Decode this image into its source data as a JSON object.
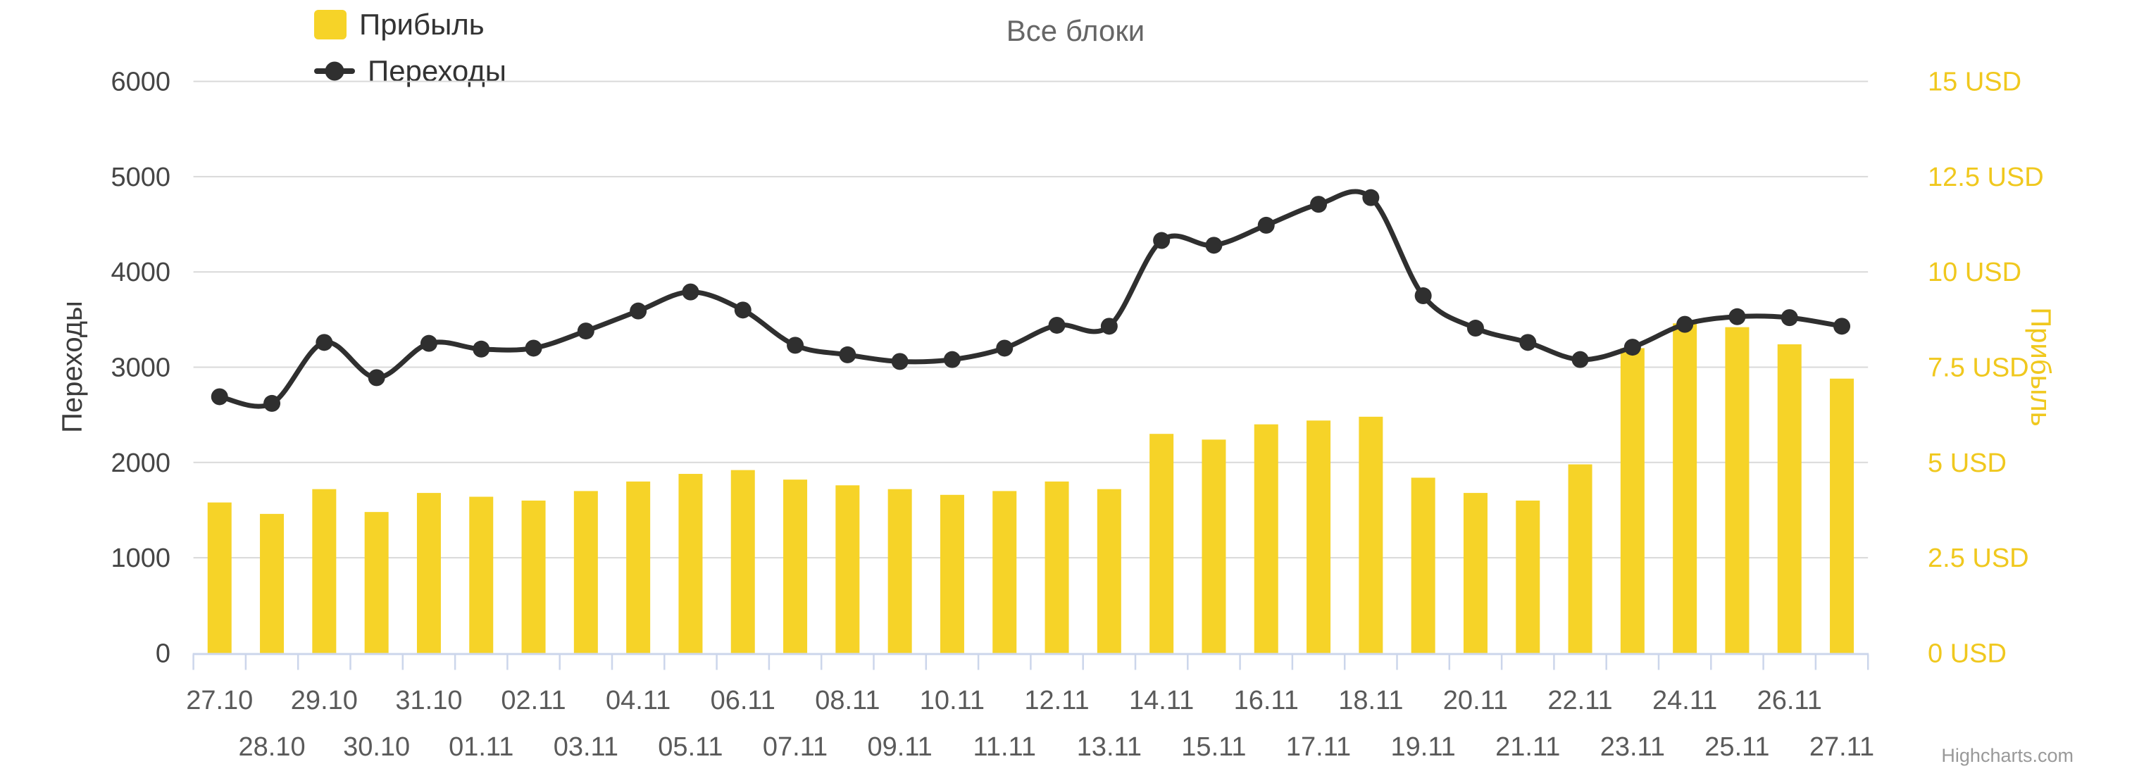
{
  "chart": {
    "title": "Все блоки",
    "credit": "Highcharts.com"
  },
  "legend": {
    "position": "top-left",
    "items": [
      {
        "label": "Прибыль",
        "marker": "square"
      },
      {
        "label": "Переходы",
        "marker": "line-dot"
      }
    ]
  },
  "chart_data": {
    "type": "combo",
    "title": "Все блоки",
    "categories": [
      "27.10",
      "28.10",
      "29.10",
      "30.10",
      "31.10",
      "01.11",
      "02.11",
      "03.11",
      "04.11",
      "05.11",
      "06.11",
      "07.11",
      "08.11",
      "09.11",
      "10.11",
      "11.11",
      "12.11",
      "13.11",
      "14.11",
      "15.11",
      "16.11",
      "17.11",
      "18.11",
      "19.11",
      "20.11",
      "21.11",
      "22.11",
      "23.11",
      "24.11",
      "25.11",
      "26.11",
      "27.11"
    ],
    "series": [
      {
        "name": "Прибыль",
        "type": "bar",
        "yaxis": "right",
        "unit": "USD",
        "color": "#f6d328",
        "values": [
          3.95,
          3.65,
          4.3,
          3.7,
          4.2,
          4.1,
          4.0,
          4.25,
          4.5,
          4.7,
          4.8,
          4.55,
          4.4,
          4.3,
          4.15,
          4.25,
          4.5,
          4.3,
          5.75,
          5.6,
          6.0,
          6.1,
          6.2,
          4.6,
          4.2,
          4.0,
          4.95,
          8.0,
          8.65,
          8.55,
          8.1,
          7.2
        ]
      },
      {
        "name": "Переходы",
        "type": "spline",
        "yaxis": "left",
        "color": "#2f2f2f",
        "values": [
          2690,
          2620,
          3260,
          2890,
          3250,
          3190,
          3200,
          3380,
          3590,
          3790,
          3600,
          3230,
          3130,
          3060,
          3080,
          3200,
          3440,
          3430,
          4330,
          4280,
          4490,
          4710,
          4780,
          3750,
          3410,
          3260,
          3080,
          3210,
          3450,
          3530,
          3520,
          3430
        ]
      }
    ],
    "left_axis": {
      "title": "Переходы",
      "min": 0,
      "max": 6000,
      "tick_interval": 1000,
      "tick_labels": [
        "0",
        "1000",
        "2000",
        "3000",
        "4000",
        "5000",
        "6000"
      ]
    },
    "right_axis": {
      "title": "Прибыль",
      "min": 0,
      "max": 15,
      "tick_interval": 2.5,
      "tick_labels": [
        "0 USD",
        "2.5 USD",
        "5 USD",
        "7.5 USD",
        "10 USD",
        "12.5 USD",
        "15 USD"
      ],
      "label_color": "#f0c81e"
    },
    "x_axis": {
      "label_rows": 2,
      "tick_color": "#ccd6eb",
      "line_color": "#ccd6eb"
    },
    "grid": true,
    "grid_color": "#d9d9d9",
    "legend_position": "top-left"
  }
}
